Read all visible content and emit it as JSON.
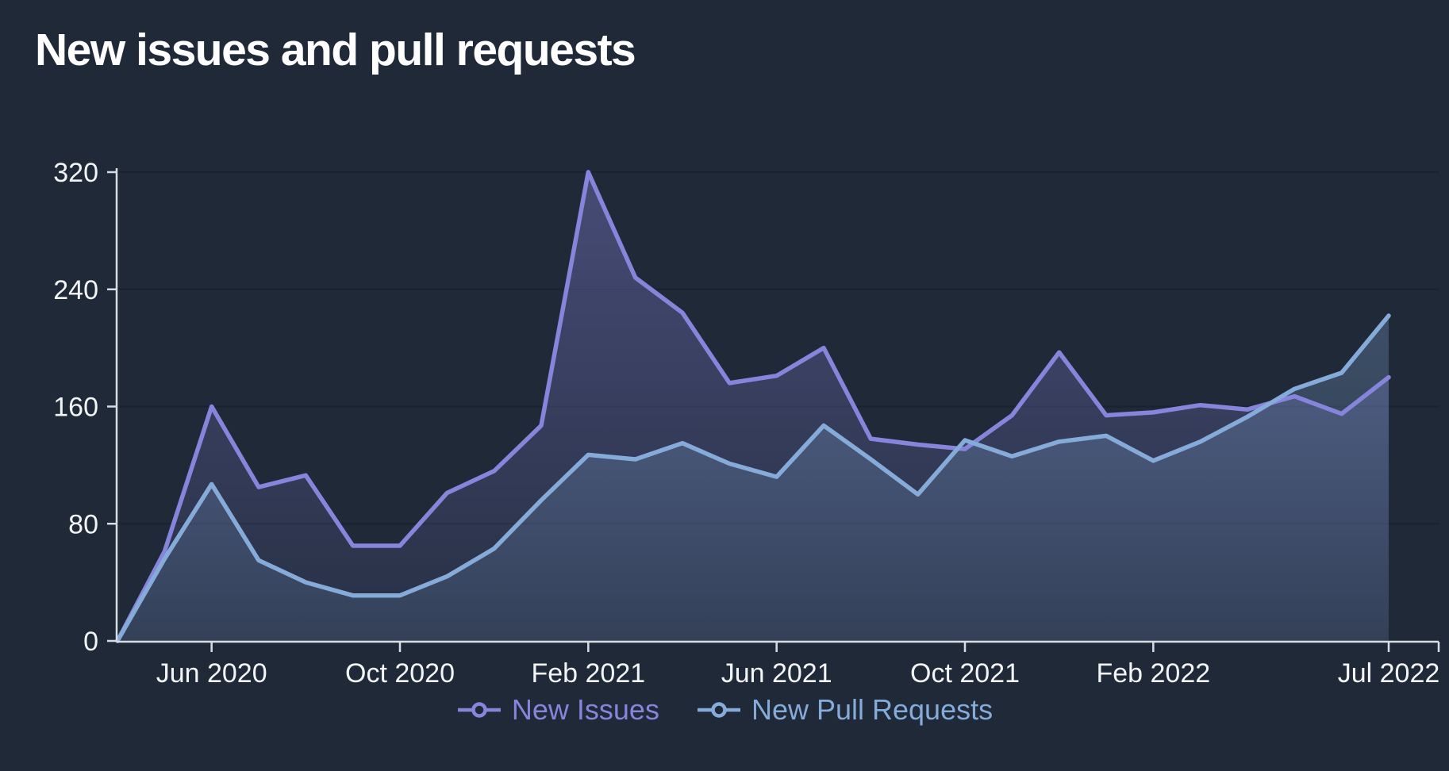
{
  "panel": {
    "background": "#1f2937",
    "gridline_color": "#1a212f",
    "axis_color": "#d8dde4",
    "text_color": "#f3f4f6"
  },
  "chart_data": {
    "type": "area",
    "title": "New issues and pull requests",
    "x": [
      "Apr 2020",
      "May 2020",
      "Jun 2020",
      "Jul 2020",
      "Aug 2020",
      "Sep 2020",
      "Oct 2020",
      "Nov 2020",
      "Dec 2020",
      "Jan 2021",
      "Feb 2021",
      "Mar 2021",
      "Apr 2021",
      "May 2021",
      "Jun 2021",
      "Jul 2021",
      "Aug 2021",
      "Sep 2021",
      "Oct 2021",
      "Nov 2021",
      "Dec 2021",
      "Jan 2022",
      "Feb 2022",
      "Mar 2022",
      "Apr 2022",
      "May 2022",
      "Jun 2022",
      "Jul 2022"
    ],
    "series": [
      {
        "name": "New Issues",
        "color": "#8784dc",
        "values": [
          0,
          61,
          160,
          105,
          113,
          65,
          65,
          101,
          116,
          147,
          320,
          248,
          224,
          176,
          181,
          200,
          138,
          134,
          131,
          154,
          197,
          154,
          156,
          161,
          158,
          167,
          155,
          180
        ]
      },
      {
        "name": "New Pull Requests",
        "color": "#85abdb",
        "values": [
          0,
          56,
          107,
          55,
          40,
          31,
          31,
          44,
          63,
          96,
          127,
          124,
          135,
          121,
          112,
          147,
          124,
          100,
          137,
          126,
          136,
          140,
          123,
          136,
          153,
          172,
          183,
          222
        ]
      }
    ],
    "y_ticks": [
      0,
      80,
      160,
      240,
      320
    ],
    "ylim": [
      0,
      320
    ],
    "x_tick_labels": [
      "Jun 2020",
      "Oct 2020",
      "Feb 2021",
      "Jun 2021",
      "Oct 2021",
      "Feb 2022",
      "Jul 2022"
    ],
    "x_tick_indices": [
      2,
      6,
      10,
      14,
      18,
      22,
      27
    ],
    "grid": true,
    "legend_position": "bottom"
  }
}
